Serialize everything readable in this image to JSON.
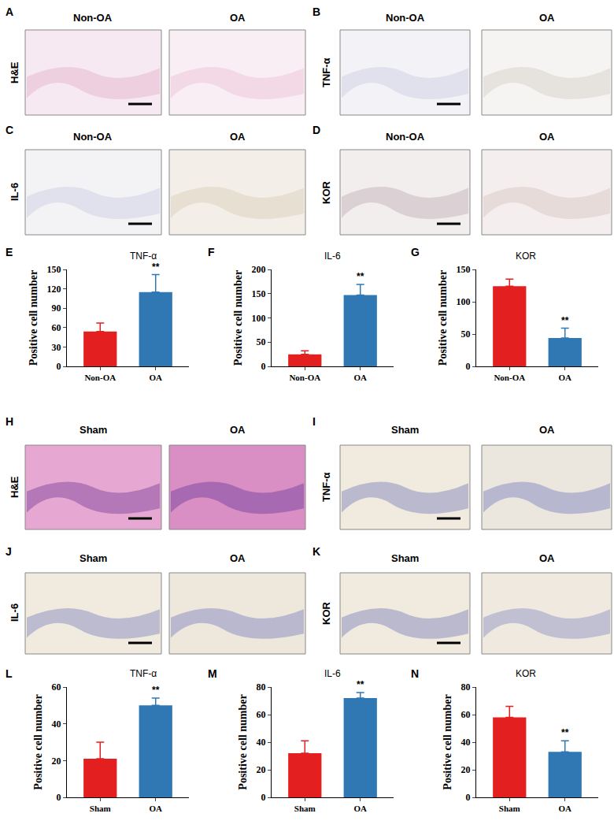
{
  "image_panels": [
    {
      "panel": "A",
      "stain": "H&E",
      "groups": [
        "Non-OA",
        "OA"
      ]
    },
    {
      "panel": "B",
      "stain": "TNF-α",
      "groups": [
        "Non-OA",
        "OA"
      ]
    },
    {
      "panel": "C",
      "stain": "IL-6",
      "groups": [
        "Non-OA",
        "OA"
      ]
    },
    {
      "panel": "D",
      "stain": "KOR",
      "groups": [
        "Non-OA",
        "OA"
      ]
    },
    {
      "panel": "H",
      "stain": "H&E",
      "groups": [
        "Sham",
        "OA"
      ]
    },
    {
      "panel": "I",
      "stain": "TNF-α",
      "groups": [
        "Sham",
        "OA"
      ]
    },
    {
      "panel": "J",
      "stain": "IL-6",
      "groups": [
        "Sham",
        "OA"
      ]
    },
    {
      "panel": "K",
      "stain": "KOR",
      "groups": [
        "Sham",
        "OA"
      ]
    }
  ],
  "chart_data": [
    {
      "panel": "E",
      "type": "bar",
      "title": "TNF-α",
      "y_label": "Positive cell number",
      "categories": [
        "Non-OA",
        "OA"
      ],
      "values": [
        54,
        115
      ],
      "errors": [
        13,
        27
      ],
      "colors": [
        "#e3201f",
        "#2f78b4"
      ],
      "ylim": [
        0,
        150
      ],
      "yticks": [
        0,
        30,
        60,
        90,
        120,
        150
      ],
      "annotations": [
        {
          "category": "OA",
          "text": "**"
        }
      ]
    },
    {
      "panel": "F",
      "type": "bar",
      "title": "IL-6",
      "y_label": "Positive cell number",
      "categories": [
        "Non-OA",
        "OA"
      ],
      "values": [
        25,
        147
      ],
      "errors": [
        7,
        22
      ],
      "colors": [
        "#e3201f",
        "#2f78b4"
      ],
      "ylim": [
        0,
        200
      ],
      "yticks": [
        0,
        50,
        100,
        150,
        200
      ],
      "annotations": [
        {
          "category": "OA",
          "text": "**"
        }
      ]
    },
    {
      "panel": "G",
      "type": "bar",
      "title": "KOR",
      "y_label": "Positive cell number",
      "categories": [
        "Non-OA",
        "OA"
      ],
      "values": [
        124,
        44
      ],
      "errors": [
        11,
        15
      ],
      "colors": [
        "#e3201f",
        "#2f78b4"
      ],
      "ylim": [
        0,
        150
      ],
      "yticks": [
        0,
        50,
        100,
        150
      ],
      "annotations": [
        {
          "category": "OA",
          "text": "**"
        }
      ]
    },
    {
      "panel": "L",
      "type": "bar",
      "title": "TNF-α",
      "y_label": "Positive cell number",
      "categories": [
        "Sham",
        "OA"
      ],
      "values": [
        21,
        50
      ],
      "errors": [
        9,
        4
      ],
      "colors": [
        "#e3201f",
        "#2f78b4"
      ],
      "ylim": [
        0,
        60
      ],
      "yticks": [
        0,
        20,
        40,
        60
      ],
      "annotations": [
        {
          "category": "OA",
          "text": "**"
        }
      ]
    },
    {
      "panel": "M",
      "type": "bar",
      "title": "IL-6",
      "y_label": "Positive cell number",
      "categories": [
        "Sham",
        "OA"
      ],
      "values": [
        32,
        72
      ],
      "errors": [
        9,
        4
      ],
      "colors": [
        "#e3201f",
        "#2f78b4"
      ],
      "ylim": [
        0,
        80
      ],
      "yticks": [
        0,
        20,
        40,
        60,
        80
      ],
      "annotations": [
        {
          "category": "OA",
          "text": "**"
        }
      ]
    },
    {
      "panel": "N",
      "type": "bar",
      "title": "KOR",
      "y_label": "Positive cell number",
      "categories": [
        "Sham",
        "OA"
      ],
      "values": [
        58,
        33
      ],
      "errors": [
        8,
        8
      ],
      "colors": [
        "#e3201f",
        "#2f78b4"
      ],
      "ylim": [
        0,
        80
      ],
      "yticks": [
        0,
        20,
        40,
        60,
        80
      ],
      "annotations": [
        {
          "category": "OA",
          "text": "**"
        }
      ]
    }
  ]
}
